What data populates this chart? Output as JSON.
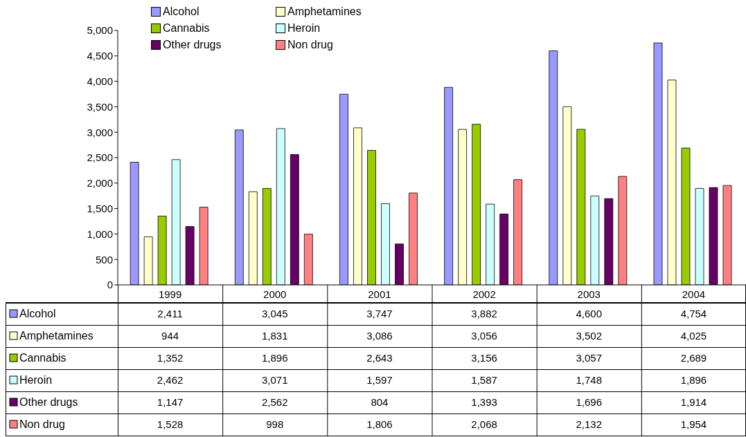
{
  "chart_data": {
    "type": "bar",
    "categories": [
      "1999",
      "2000",
      "2001",
      "2002",
      "2003",
      "2004"
    ],
    "series": [
      {
        "name": "Alcohol",
        "color": "#9999ff",
        "values": [
          2411,
          3045,
          3747,
          3882,
          4600,
          4754
        ],
        "value_labels": [
          "2,411",
          "3,045",
          "3,747",
          "3,882",
          "4,600",
          "4,754"
        ]
      },
      {
        "name": "Amphetamines",
        "color": "#ffffcc",
        "values": [
          944,
          1831,
          3086,
          3056,
          3502,
          4025
        ],
        "value_labels": [
          "944",
          "1,831",
          "3,086",
          "3,056",
          "3,502",
          "4,025"
        ]
      },
      {
        "name": "Cannabis",
        "color": "#99cc00",
        "values": [
          1352,
          1896,
          2643,
          3156,
          3057,
          2689
        ],
        "value_labels": [
          "1,352",
          "1,896",
          "2,643",
          "3,156",
          "3,057",
          "2,689"
        ]
      },
      {
        "name": "Heroin",
        "color": "#ccffff",
        "values": [
          2462,
          3071,
          1597,
          1587,
          1748,
          1896
        ],
        "value_labels": [
          "2,462",
          "3,071",
          "1,597",
          "1,587",
          "1,748",
          "1,896"
        ]
      },
      {
        "name": "Other drugs",
        "color": "#660066",
        "values": [
          1147,
          2562,
          804,
          1393,
          1696,
          1914
        ],
        "value_labels": [
          "1,147",
          "2,562",
          "804",
          "1,393",
          "1,696",
          "1,914"
        ]
      },
      {
        "name": "Non drug",
        "color": "#ff8080",
        "values": [
          1528,
          998,
          1806,
          2068,
          2132,
          1954
        ],
        "value_labels": [
          "1,528",
          "998",
          "1,806",
          "2,068",
          "2,132",
          "1,954"
        ]
      }
    ],
    "ylim": [
      0,
      5000
    ],
    "yticks": [
      0,
      500,
      {
        "value": 1000,
        "label": "1,000"
      },
      {
        "value": 1500,
        "label": "1,500"
      },
      {
        "value": 2000,
        "label": "2,000"
      },
      {
        "value": 2500,
        "label": "2,500"
      },
      {
        "value": 3000,
        "label": "3,000"
      },
      {
        "value": 3500,
        "label": "3,500"
      },
      {
        "value": 4000,
        "label": "4,000"
      },
      {
        "value": 4500,
        "label": "4,500"
      },
      {
        "value": 5000,
        "label": "5,000"
      }
    ],
    "legend": "top left"
  }
}
